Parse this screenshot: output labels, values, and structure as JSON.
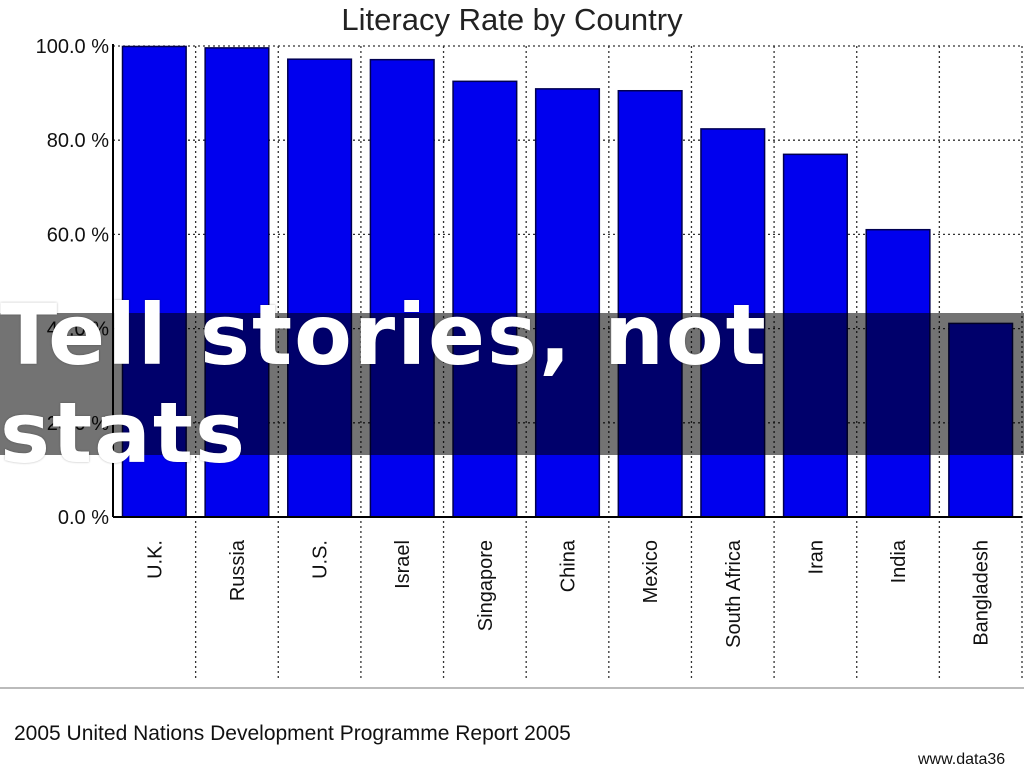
{
  "chart_data": {
    "type": "bar",
    "title": "Literacy Rate by Country",
    "categories": [
      "U.K.",
      "Russia",
      "U.S.",
      "Israel",
      "Singapore",
      "China",
      "Mexico",
      "South Africa",
      "Iran",
      "India",
      "Bangladesh"
    ],
    "values": [
      99.9,
      99.6,
      97.2,
      97.1,
      92.5,
      90.9,
      90.5,
      82.4,
      77.0,
      61.0,
      41.1
    ],
    "ylim": [
      0,
      100
    ],
    "yticks": [
      "0.0 %",
      "20.0 %",
      "40.0 %",
      "60.0 %",
      "80.0 %",
      "100.0 %"
    ],
    "ytick_values": [
      0,
      20,
      40,
      60,
      80,
      100
    ],
    "xlabel": "",
    "ylabel": "",
    "grid": true,
    "bar_color": "#0000ee"
  },
  "source_note": "2005 United Nations Development Programme Report 2005",
  "watermark": "www.data36",
  "overlay_caption": "Tell stories, not stats"
}
